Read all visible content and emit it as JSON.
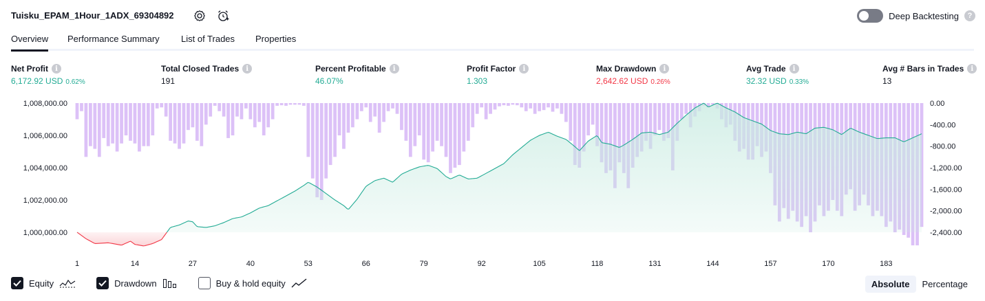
{
  "header": {
    "title": "Tuisku_EPAM_1Hour_1ADX_69304892",
    "settings_icon": "gear-icon",
    "snapshot_icon": "add-alert-clock-icon",
    "deep_backtesting_label": "Deep Backtesting",
    "deep_backtesting_enabled": false
  },
  "tabs": [
    {
      "label": "Overview",
      "active": true
    },
    {
      "label": "Performance Summary",
      "active": false
    },
    {
      "label": "List of Trades",
      "active": false
    },
    {
      "label": "Properties",
      "active": false
    }
  ],
  "metrics": [
    {
      "label": "Net Profit",
      "value": "6,172.92 USD",
      "pct": "0.62%",
      "color": "#22ab94"
    },
    {
      "label": "Total Closed Trades",
      "value": "191",
      "pct": "",
      "color": "#131722"
    },
    {
      "label": "Percent Profitable",
      "value": "46.07%",
      "pct": "",
      "color": "#22ab94"
    },
    {
      "label": "Profit Factor",
      "value": "1.303",
      "pct": "",
      "color": "#22ab94"
    },
    {
      "label": "Max Drawdown",
      "value": "2,642.62 USD",
      "pct": "0.26%",
      "color": "#f23645"
    },
    {
      "label": "Avg Trade",
      "value": "32.32 USD",
      "pct": "0.33%",
      "color": "#22ab94"
    },
    {
      "label": "Avg # Bars in Trades",
      "value": "13",
      "pct": "",
      "color": "#131722"
    }
  ],
  "legend": {
    "equity": {
      "label": "Equity",
      "checked": true
    },
    "drawdown": {
      "label": "Drawdown",
      "checked": true
    },
    "buyhold": {
      "label": "Buy & hold equity",
      "checked": false
    }
  },
  "mode": {
    "absolute": "Absolute",
    "percentage": "Percentage",
    "active": "absolute"
  },
  "colors": {
    "equity_line": "#22ab94",
    "equity_fill": "#c8ebe1",
    "loss_line": "#f23645",
    "loss_fill": "#fbd5d8",
    "drawdown_bar": "#d6b6f6"
  },
  "chart_data": {
    "type": "area",
    "x_ticks": [
      1,
      14,
      27,
      40,
      53,
      66,
      79,
      92,
      105,
      118,
      131,
      144,
      157,
      170,
      183
    ],
    "left_ticks": [
      "1,008,000.00",
      "1,006,000.00",
      "1,004,000.00",
      "1,002,000.00",
      "1,000,000.00"
    ],
    "left_tick_values": [
      1008000,
      1006000,
      1004000,
      1002000,
      1000000
    ],
    "right_ticks": [
      "0.00",
      "-400.00",
      "-800.00",
      "-1,200.00",
      "-1,600.00",
      "-2,000.00",
      "-2,400.00"
    ],
    "right_tick_values": [
      0,
      -400,
      -800,
      -1200,
      -1600,
      -2000,
      -2400
    ],
    "left_range": [
      999000,
      1008000
    ],
    "right_range": [
      -2680,
      0
    ],
    "x_range": [
      1,
      191
    ],
    "equity_keypoints": [
      [
        1,
        1000000
      ],
      [
        3,
        999600
      ],
      [
        5,
        999300
      ],
      [
        8,
        999350
      ],
      [
        11,
        999200
      ],
      [
        13,
        999450
      ],
      [
        14,
        999250
      ],
      [
        16,
        999150
      ],
      [
        18,
        999300
      ],
      [
        20,
        999550
      ],
      [
        22,
        1000300
      ],
      [
        24,
        1000450
      ],
      [
        26,
        1000700
      ],
      [
        27,
        1000650
      ],
      [
        28,
        1000350
      ],
      [
        30,
        1000300
      ],
      [
        32,
        1000400
      ],
      [
        34,
        1000600
      ],
      [
        36,
        1000850
      ],
      [
        38,
        1000950
      ],
      [
        40,
        1001200
      ],
      [
        42,
        1001500
      ],
      [
        44,
        1001650
      ],
      [
        46,
        1001950
      ],
      [
        48,
        1002250
      ],
      [
        50,
        1002550
      ],
      [
        52,
        1002900
      ],
      [
        53,
        1003100
      ],
      [
        55,
        1002800
      ],
      [
        57,
        1002400
      ],
      [
        59,
        1002000
      ],
      [
        61,
        1001650
      ],
      [
        62,
        1001400
      ],
      [
        64,
        1002050
      ],
      [
        66,
        1002850
      ],
      [
        68,
        1003200
      ],
      [
        70,
        1003350
      ],
      [
        72,
        1003100
      ],
      [
        74,
        1003600
      ],
      [
        76,
        1003850
      ],
      [
        78,
        1004050
      ],
      [
        80,
        1004150
      ],
      [
        82,
        1003950
      ],
      [
        84,
        1003450
      ],
      [
        85,
        1003300
      ],
      [
        87,
        1003550
      ],
      [
        89,
        1003300
      ],
      [
        91,
        1003350
      ],
      [
        93,
        1003650
      ],
      [
        95,
        1003950
      ],
      [
        97,
        1004250
      ],
      [
        99,
        1004800
      ],
      [
        101,
        1005250
      ],
      [
        103,
        1005700
      ],
      [
        105,
        1006000
      ],
      [
        107,
        1006200
      ],
      [
        109,
        1005950
      ],
      [
        111,
        1005750
      ],
      [
        113,
        1005300
      ],
      [
        114,
        1005050
      ],
      [
        116,
        1005650
      ],
      [
        118,
        1006000
      ],
      [
        119,
        1005550
      ],
      [
        121,
        1005450
      ],
      [
        123,
        1005250
      ],
      [
        124,
        1005400
      ],
      [
        126,
        1005750
      ],
      [
        128,
        1006150
      ],
      [
        130,
        1006200
      ],
      [
        132,
        1006050
      ],
      [
        134,
        1006200
      ],
      [
        136,
        1006750
      ],
      [
        138,
        1007250
      ],
      [
        140,
        1007700
      ],
      [
        142,
        1008000
      ],
      [
        143,
        1007750
      ],
      [
        145,
        1008000
      ],
      [
        147,
        1007700
      ],
      [
        149,
        1007450
      ],
      [
        151,
        1007100
      ],
      [
        153,
        1006900
      ],
      [
        155,
        1006700
      ],
      [
        157,
        1006300
      ],
      [
        159,
        1006100
      ],
      [
        161,
        1006050
      ],
      [
        163,
        1006200
      ],
      [
        165,
        1006100
      ],
      [
        167,
        1006450
      ],
      [
        169,
        1006500
      ],
      [
        171,
        1006350
      ],
      [
        173,
        1006050
      ],
      [
        175,
        1006450
      ],
      [
        177,
        1006200
      ],
      [
        179,
        1006000
      ],
      [
        181,
        1005800
      ],
      [
        183,
        1005850
      ],
      [
        185,
        1005850
      ],
      [
        187,
        1005600
      ],
      [
        189,
        1005850
      ],
      [
        191,
        1006100
      ]
    ],
    "drawdown_keypoints": [
      [
        1,
        -300
      ],
      [
        2,
        -150
      ],
      [
        3,
        -1000
      ],
      [
        4,
        -800
      ],
      [
        5,
        -850
      ],
      [
        6,
        -1000
      ],
      [
        7,
        -650
      ],
      [
        8,
        -800
      ],
      [
        9,
        -750
      ],
      [
        10,
        -900
      ],
      [
        11,
        -750
      ],
      [
        12,
        -600
      ],
      [
        13,
        -700
      ],
      [
        14,
        -750
      ],
      [
        15,
        -900
      ],
      [
        16,
        -800
      ],
      [
        17,
        -800
      ],
      [
        18,
        -600
      ],
      [
        19,
        -100
      ],
      [
        20,
        -80
      ],
      [
        21,
        -250
      ],
      [
        22,
        -700
      ],
      [
        23,
        -750
      ],
      [
        24,
        -850
      ],
      [
        25,
        -750
      ],
      [
        26,
        -500
      ],
      [
        27,
        -450
      ],
      [
        28,
        -700
      ],
      [
        29,
        -800
      ],
      [
        30,
        -400
      ],
      [
        31,
        -250
      ],
      [
        32,
        -50
      ],
      [
        33,
        -150
      ],
      [
        34,
        -250
      ],
      [
        35,
        -650
      ],
      [
        36,
        -600
      ],
      [
        37,
        -250
      ],
      [
        38,
        -300
      ],
      [
        39,
        -100
      ],
      [
        40,
        -300
      ],
      [
        41,
        -450
      ],
      [
        42,
        -350
      ],
      [
        43,
        -600
      ],
      [
        44,
        -450
      ],
      [
        45,
        -300
      ],
      [
        46,
        -50
      ],
      [
        47,
        -40
      ],
      [
        48,
        -50
      ],
      [
        49,
        -30
      ],
      [
        50,
        -30
      ],
      [
        51,
        -30
      ],
      [
        52,
        -50
      ],
      [
        53,
        -1000
      ],
      [
        54,
        -1400
      ],
      [
        55,
        -1750
      ],
      [
        56,
        -1800
      ],
      [
        57,
        -1400
      ],
      [
        58,
        -1150
      ],
      [
        59,
        -1000
      ],
      [
        60,
        -600
      ],
      [
        61,
        -850
      ],
      [
        62,
        -550
      ],
      [
        63,
        -450
      ],
      [
        64,
        -300
      ],
      [
        65,
        -150
      ],
      [
        66,
        -80
      ],
      [
        67,
        -350
      ],
      [
        68,
        -250
      ],
      [
        69,
        -550
      ],
      [
        70,
        -350
      ],
      [
        71,
        -150
      ],
      [
        72,
        -100
      ],
      [
        73,
        -200
      ],
      [
        74,
        -500
      ],
      [
        75,
        -700
      ],
      [
        76,
        -1000
      ],
      [
        77,
        -800
      ],
      [
        78,
        -600
      ],
      [
        79,
        -1050
      ],
      [
        80,
        -1100
      ],
      [
        81,
        -900
      ],
      [
        82,
        -700
      ],
      [
        83,
        -800
      ],
      [
        84,
        -1000
      ],
      [
        85,
        -1300
      ],
      [
        86,
        -1200
      ],
      [
        87,
        -1150
      ],
      [
        88,
        -900
      ],
      [
        89,
        -700
      ],
      [
        90,
        -450
      ],
      [
        91,
        -200
      ],
      [
        92,
        -80
      ],
      [
        93,
        -300
      ],
      [
        94,
        -200
      ],
      [
        95,
        -120
      ],
      [
        96,
        -60
      ],
      [
        97,
        -40
      ],
      [
        98,
        -50
      ],
      [
        99,
        -30
      ],
      [
        100,
        -40
      ],
      [
        101,
        -80
      ],
      [
        102,
        -150
      ],
      [
        103,
        -100
      ],
      [
        104,
        -200
      ],
      [
        105,
        -150
      ],
      [
        106,
        -130
      ],
      [
        107,
        -80
      ],
      [
        108,
        -160
      ],
      [
        109,
        -100
      ],
      [
        110,
        -200
      ],
      [
        111,
        -350
      ],
      [
        112,
        -700
      ],
      [
        113,
        -1150
      ],
      [
        114,
        -1200
      ],
      [
        115,
        -900
      ],
      [
        116,
        -600
      ],
      [
        117,
        -400
      ],
      [
        118,
        -800
      ],
      [
        119,
        -1100
      ],
      [
        120,
        -1300
      ],
      [
        121,
        -1250
      ],
      [
        122,
        -1580
      ],
      [
        123,
        -1100
      ],
      [
        124,
        -1300
      ],
      [
        125,
        -1580
      ],
      [
        126,
        -1200
      ],
      [
        127,
        -1000
      ],
      [
        128,
        -900
      ],
      [
        129,
        -700
      ],
      [
        130,
        -850
      ],
      [
        131,
        -600
      ],
      [
        132,
        -500
      ],
      [
        133,
        -700
      ],
      [
        134,
        -650
      ],
      [
        135,
        -1250
      ],
      [
        136,
        -700
      ],
      [
        137,
        -300
      ],
      [
        138,
        -200
      ],
      [
        139,
        -450
      ],
      [
        140,
        -250
      ],
      [
        141,
        -150
      ],
      [
        142,
        -50
      ],
      [
        143,
        -80
      ],
      [
        144,
        -30
      ],
      [
        145,
        -100
      ],
      [
        146,
        -300
      ],
      [
        147,
        -450
      ],
      [
        148,
        -400
      ],
      [
        149,
        -700
      ],
      [
        150,
        -900
      ],
      [
        151,
        -850
      ],
      [
        152,
        -1050
      ],
      [
        153,
        -1050
      ],
      [
        154,
        -800
      ],
      [
        155,
        -1000
      ],
      [
        156,
        -900
      ],
      [
        157,
        -1300
      ],
      [
        158,
        -1900
      ],
      [
        159,
        -2200
      ],
      [
        160,
        -1950
      ],
      [
        161,
        -2150
      ],
      [
        162,
        -2000
      ],
      [
        163,
        -2200
      ],
      [
        164,
        -2300
      ],
      [
        165,
        -2100
      ],
      [
        166,
        -2400
      ],
      [
        167,
        -2200
      ],
      [
        168,
        -1900
      ],
      [
        169,
        -2100
      ],
      [
        170,
        -2000
      ],
      [
        171,
        -1800
      ],
      [
        172,
        -2000
      ],
      [
        173,
        -2100
      ],
      [
        174,
        -1700
      ],
      [
        175,
        -1600
      ],
      [
        176,
        -2000
      ],
      [
        177,
        -1900
      ],
      [
        178,
        -1700
      ],
      [
        179,
        -1900
      ],
      [
        180,
        -2100
      ],
      [
        181,
        -2000
      ],
      [
        182,
        -2100
      ],
      [
        183,
        -2300
      ],
      [
        184,
        -2200
      ],
      [
        185,
        -2400
      ],
      [
        186,
        -2350
      ],
      [
        187,
        -2450
      ],
      [
        188,
        -2500
      ],
      [
        189,
        -2643
      ],
      [
        190,
        -2643
      ],
      [
        191,
        -2300
      ]
    ]
  }
}
